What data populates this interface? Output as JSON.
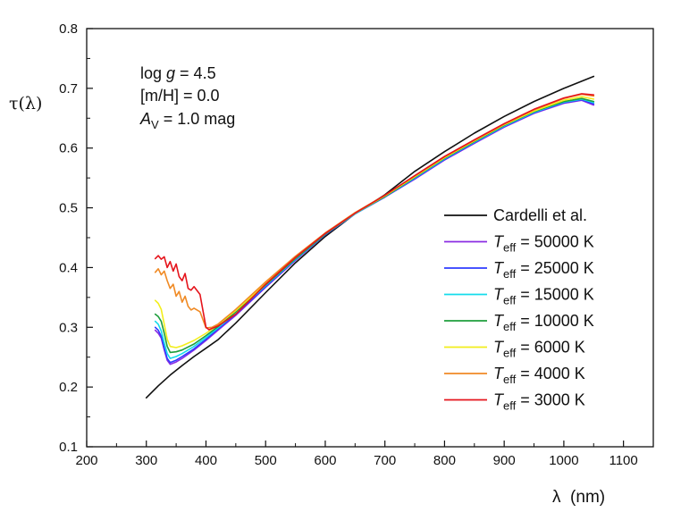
{
  "chart_data": {
    "type": "line",
    "xlabel": "λ  (nm)",
    "ylabel": "τ(λ)",
    "xlim": [
      200,
      1150
    ],
    "ylim": [
      0.1,
      0.8
    ],
    "xticks": [
      200,
      300,
      400,
      500,
      600,
      700,
      800,
      900,
      1000,
      1100
    ],
    "yticks": [
      0.1,
      0.2,
      0.3,
      0.4,
      0.5,
      0.6,
      0.7,
      0.8
    ],
    "grid": false,
    "legend_position": "bottom-right",
    "annotations": {
      "line1": {
        "prefix": "log ",
        "italic": "g",
        "suffix": " = 4.5"
      },
      "line2": "[m/H] = 0.0",
      "line3": {
        "italic": "A",
        "sub": "V",
        "suffix": " = 1.0 mag"
      }
    },
    "series": [
      {
        "name": "Cardelli et al.",
        "label_italic": "",
        "label_sub": "",
        "label_rest": "Cardelli et al.",
        "color": "#111111",
        "x": [
          300,
          320,
          340,
          360,
          380,
          400,
          420,
          450,
          500,
          550,
          600,
          650,
          700,
          750,
          800,
          850,
          900,
          950,
          1000,
          1050
        ],
        "y": [
          0.182,
          0.202,
          0.22,
          0.236,
          0.251,
          0.265,
          0.279,
          0.307,
          0.358,
          0.408,
          0.452,
          0.49,
          0.522,
          0.561,
          0.594,
          0.625,
          0.653,
          0.678,
          0.7,
          0.72
        ]
      },
      {
        "name": "Teff = 50000 K",
        "label_italic": "T",
        "label_sub": "eff",
        "label_rest": " = 50000 K",
        "color": "#8A2BE2",
        "x": [
          315,
          320,
          325,
          330,
          335,
          340,
          350,
          360,
          380,
          400,
          420,
          450,
          500,
          550,
          600,
          650,
          700,
          750,
          800,
          850,
          900,
          950,
          1000,
          1030,
          1050
        ],
        "y": [
          0.295,
          0.29,
          0.282,
          0.262,
          0.245,
          0.238,
          0.242,
          0.248,
          0.262,
          0.278,
          0.295,
          0.32,
          0.367,
          0.412,
          0.455,
          0.49,
          0.518,
          0.548,
          0.58,
          0.608,
          0.635,
          0.658,
          0.675,
          0.68,
          0.672
        ]
      },
      {
        "name": "Teff = 25000 K",
        "label_italic": "T",
        "label_sub": "eff",
        "label_rest": " = 25000 K",
        "color": "#2E3CFF",
        "x": [
          315,
          320,
          325,
          330,
          335,
          340,
          350,
          360,
          380,
          400,
          420,
          450,
          500,
          550,
          600,
          650,
          700,
          750,
          800,
          850,
          900,
          950,
          1000,
          1030,
          1050
        ],
        "y": [
          0.3,
          0.295,
          0.285,
          0.265,
          0.248,
          0.241,
          0.245,
          0.251,
          0.264,
          0.28,
          0.297,
          0.322,
          0.368,
          0.413,
          0.455,
          0.49,
          0.518,
          0.549,
          0.581,
          0.609,
          0.636,
          0.659,
          0.676,
          0.681,
          0.674
        ]
      },
      {
        "name": "Teff = 15000 K",
        "label_italic": "T",
        "label_sub": "eff",
        "label_rest": " = 15000 K",
        "color": "#14DCEB",
        "x": [
          315,
          320,
          325,
          330,
          335,
          340,
          350,
          360,
          380,
          400,
          420,
          450,
          500,
          550,
          600,
          650,
          700,
          750,
          800,
          850,
          900,
          950,
          1000,
          1030,
          1050
        ],
        "y": [
          0.31,
          0.305,
          0.294,
          0.274,
          0.256,
          0.248,
          0.251,
          0.256,
          0.268,
          0.283,
          0.299,
          0.324,
          0.37,
          0.414,
          0.456,
          0.49,
          0.519,
          0.55,
          0.582,
          0.61,
          0.637,
          0.66,
          0.677,
          0.682,
          0.676
        ]
      },
      {
        "name": "Teff = 10000 K",
        "label_italic": "T",
        "label_sub": "eff",
        "label_rest": " = 10000 K",
        "color": "#1E9E3C",
        "x": [
          315,
          320,
          325,
          330,
          335,
          340,
          350,
          360,
          380,
          400,
          420,
          450,
          500,
          550,
          600,
          650,
          700,
          750,
          800,
          850,
          900,
          950,
          1000,
          1030,
          1050
        ],
        "y": [
          0.322,
          0.318,
          0.31,
          0.29,
          0.268,
          0.258,
          0.259,
          0.262,
          0.272,
          0.286,
          0.301,
          0.326,
          0.371,
          0.415,
          0.456,
          0.491,
          0.519,
          0.551,
          0.583,
          0.611,
          0.638,
          0.661,
          0.678,
          0.683,
          0.678
        ]
      },
      {
        "name": "Teff = 6000 K",
        "label_italic": "T",
        "label_sub": "eff",
        "label_rest": " =  6000 K",
        "color": "#F2EE1C",
        "x": [
          315,
          320,
          325,
          330,
          335,
          340,
          350,
          360,
          380,
          400,
          420,
          450,
          500,
          550,
          600,
          650,
          700,
          750,
          800,
          850,
          900,
          950,
          1000,
          1030,
          1050
        ],
        "y": [
          0.345,
          0.34,
          0.33,
          0.305,
          0.28,
          0.268,
          0.266,
          0.269,
          0.278,
          0.29,
          0.304,
          0.328,
          0.373,
          0.417,
          0.457,
          0.491,
          0.52,
          0.552,
          0.584,
          0.612,
          0.639,
          0.662,
          0.68,
          0.686,
          0.682
        ]
      },
      {
        "name": "Teff = 4000 K",
        "label_italic": "T",
        "label_sub": "eff",
        "label_rest": " =  4000 K",
        "color": "#F08A24",
        "x": [
          315,
          320,
          325,
          330,
          335,
          340,
          345,
          350,
          355,
          360,
          365,
          370,
          375,
          380,
          390,
          400,
          410,
          420,
          450,
          500,
          550,
          600,
          650,
          700,
          750,
          800,
          850,
          900,
          950,
          1000,
          1030,
          1050
        ],
        "y": [
          0.392,
          0.398,
          0.388,
          0.394,
          0.378,
          0.365,
          0.372,
          0.352,
          0.36,
          0.342,
          0.352,
          0.335,
          0.329,
          0.332,
          0.326,
          0.299,
          0.3,
          0.305,
          0.33,
          0.376,
          0.419,
          0.458,
          0.492,
          0.521,
          0.553,
          0.585,
          0.613,
          0.64,
          0.664,
          0.683,
          0.69,
          0.687
        ]
      },
      {
        "name": "Teff = 3000 K",
        "label_italic": "T",
        "label_sub": "eff",
        "label_rest": " =  3000 K",
        "color": "#E5141C",
        "x": [
          315,
          320,
          325,
          330,
          335,
          340,
          345,
          350,
          355,
          360,
          365,
          370,
          375,
          380,
          390,
          400,
          405,
          410,
          420,
          450,
          500,
          550,
          600,
          650,
          700,
          750,
          800,
          850,
          900,
          950,
          1000,
          1030,
          1050
        ],
        "y": [
          0.415,
          0.42,
          0.414,
          0.418,
          0.4,
          0.41,
          0.394,
          0.406,
          0.385,
          0.378,
          0.39,
          0.365,
          0.362,
          0.368,
          0.355,
          0.3,
          0.296,
          0.298,
          0.302,
          0.322,
          0.372,
          0.417,
          0.457,
          0.491,
          0.521,
          0.554,
          0.586,
          0.614,
          0.641,
          0.665,
          0.684,
          0.691,
          0.689
        ]
      }
    ]
  }
}
